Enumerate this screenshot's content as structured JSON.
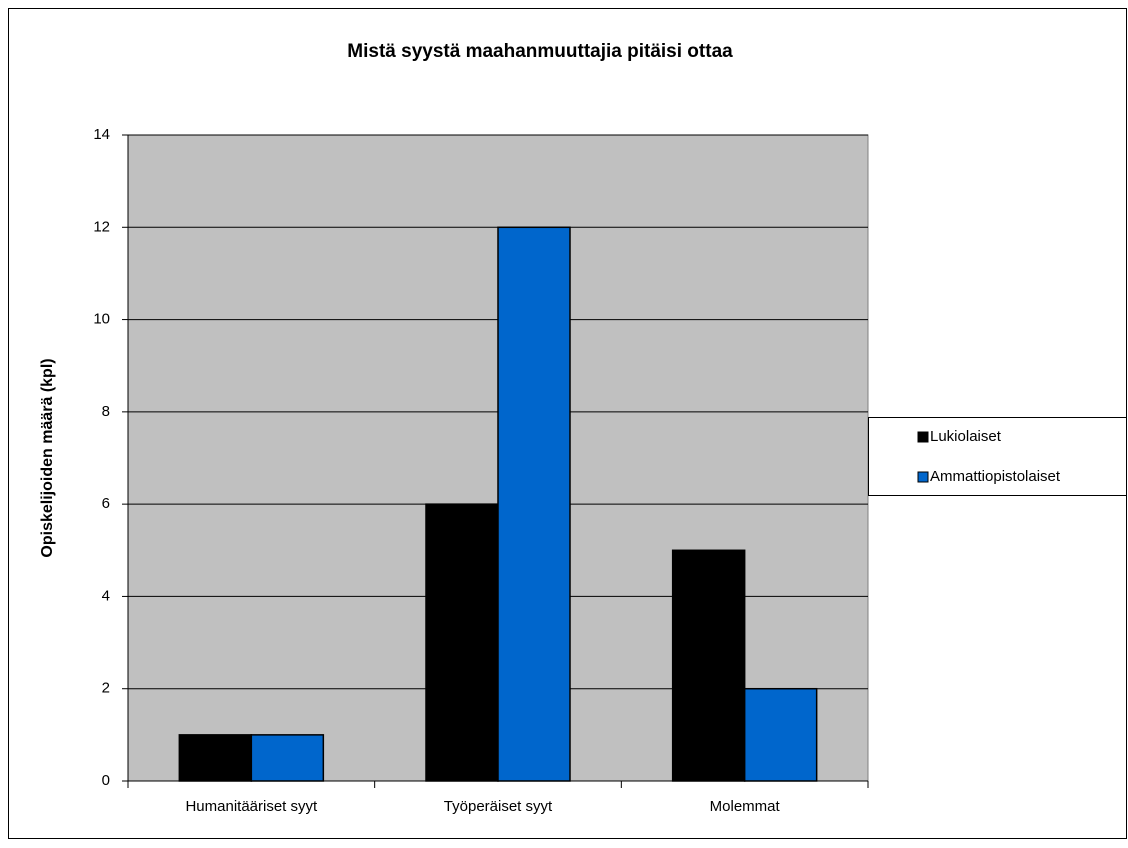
{
  "chart_data": {
    "type": "bar",
    "title": "Mistä syystä maahanmuuttajia pitäisi ottaa",
    "y_label": "Opiskelijoiden  määrä (kpl)",
    "categories": [
      "Humanitääriset syyt",
      "Työperäiset syyt",
      "Molemmat"
    ],
    "series": [
      {
        "name": "Lukiolaiset",
        "color": "#000000",
        "values": [
          1,
          6,
          5
        ]
      },
      {
        "name": "Ammattiopistolaiset",
        "color": "#0066cc",
        "values": [
          1,
          12,
          2
        ]
      }
    ],
    "ylim": [
      0,
      14
    ],
    "yticks": [
      0,
      2,
      4,
      6,
      8,
      10,
      12,
      14
    ],
    "grid": true,
    "legend": "right"
  }
}
